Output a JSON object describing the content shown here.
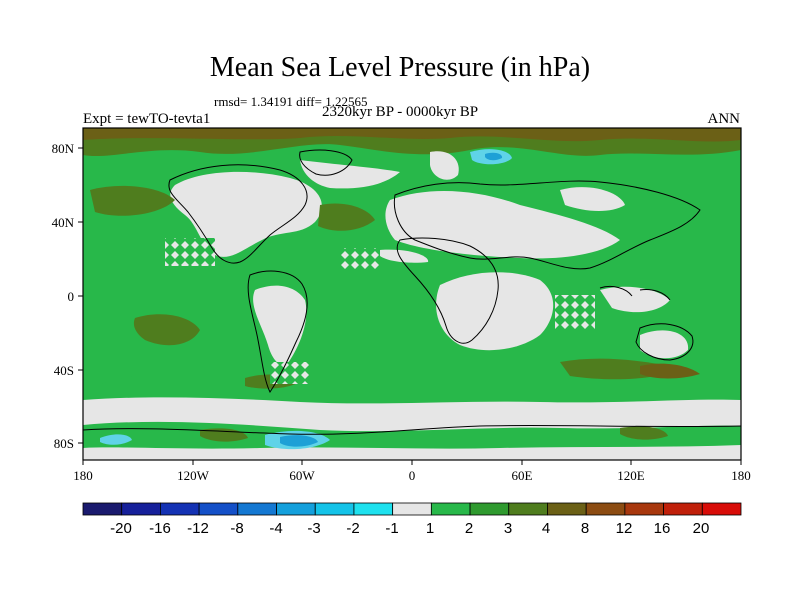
{
  "header": {
    "title": "Mean Sea Level Pressure (in hPa)",
    "stats": "rmsd= 1.34191 diff= 1.22565",
    "subtitle": "2320kyr BP - 0000kyr BP",
    "left_label": "Expt = tewTO-tevta1",
    "right_label": "ANN"
  },
  "map": {
    "lon_ticks": [
      "180",
      "120W",
      "60W",
      "0",
      "60E",
      "120E",
      "180"
    ],
    "lat_ticks": [
      "80N",
      "40N",
      "0",
      "40S",
      "80S"
    ]
  },
  "colorbar": {
    "labels": [
      "-20",
      "-16",
      "-12",
      "-8",
      "-4",
      "-3",
      "-2",
      "-1",
      "1",
      "2",
      "3",
      "4",
      "8",
      "12",
      "16",
      "20"
    ],
    "colors": [
      "#1a1a6e",
      "#16209a",
      "#1432b4",
      "#1450c8",
      "#1478d2",
      "#14a0dc",
      "#14c3e8",
      "#1ee1ee",
      "#e6e6e6",
      "#28b84a",
      "#2f9a2f",
      "#4f7d1e",
      "#6b6016",
      "#8c4c12",
      "#a8380e",
      "#c0200a",
      "#d80c08"
    ]
  },
  "colors": {
    "background_field": "#28b84a",
    "neutral": "#e6e6e6",
    "positive_moderate": "#4f7d1e",
    "positive_strong": "#6b6016",
    "negative_light": "#5fd3e8",
    "negative_medium": "#1ea0d6"
  }
}
